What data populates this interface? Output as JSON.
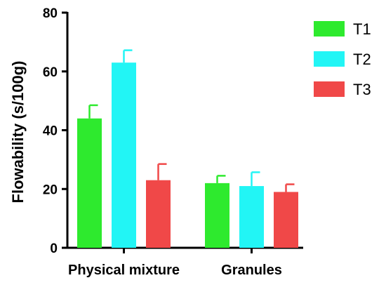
{
  "chart_data": {
    "type": "bar",
    "title": "",
    "xlabel": "",
    "ylabel": "Flowability (s/100g)",
    "ylim": [
      0,
      80
    ],
    "yticks": [
      0,
      20,
      40,
      60,
      80
    ],
    "grid": false,
    "legend_position": "top-right",
    "error_bars": true,
    "categories": [
      "Physical mixture",
      "Granules"
    ],
    "series": [
      {
        "name": "T1",
        "color": "#2eea2e",
        "values": [
          44,
          22
        ],
        "errors": [
          4.5,
          2.5
        ]
      },
      {
        "name": "T2",
        "color": "#22f5f5",
        "values": [
          63,
          21
        ],
        "errors": [
          4.2,
          4.7
        ]
      },
      {
        "name": "T3",
        "color": "#f04848",
        "values": [
          23,
          19
        ],
        "errors": [
          5.5,
          2.6
        ]
      }
    ]
  }
}
